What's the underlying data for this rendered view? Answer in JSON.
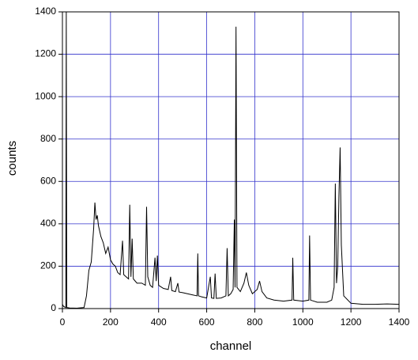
{
  "chart_data": {
    "type": "line",
    "x_label": "channel",
    "y_label": "counts",
    "x": [
      0,
      5,
      14,
      16,
      18,
      30,
      60,
      90,
      100,
      110,
      120,
      130,
      135,
      140,
      145,
      150,
      160,
      170,
      180,
      190,
      200,
      210,
      220,
      230,
      240,
      250,
      255,
      265,
      275,
      280,
      285,
      290,
      295,
      310,
      330,
      345,
      350,
      355,
      365,
      375,
      385,
      390,
      395,
      400,
      420,
      440,
      450,
      455,
      470,
      480,
      485,
      500,
      520,
      540,
      560,
      563,
      566,
      580,
      600,
      615,
      620,
      630,
      635,
      640,
      660,
      680,
      685,
      690,
      700,
      710,
      715,
      718,
      722,
      726,
      740,
      755,
      765,
      775,
      790,
      810,
      820,
      830,
      850,
      880,
      920,
      955,
      958,
      962,
      1000,
      1025,
      1028,
      1032,
      1060,
      1100,
      1120,
      1130,
      1135,
      1140,
      1145,
      1150,
      1155,
      1160,
      1170,
      1200,
      1250,
      1300,
      1350,
      1400
    ],
    "series": [
      {
        "color": "#000000",
        "values": [
          20,
          10,
          5,
          1400,
          5,
          3,
          2,
          5,
          60,
          180,
          220,
          380,
          500,
          420,
          440,
          390,
          340,
          310,
          260,
          290,
          230,
          210,
          200,
          170,
          160,
          320,
          160,
          150,
          140,
          490,
          150,
          330,
          140,
          120,
          120,
          110,
          480,
          150,
          110,
          100,
          240,
          130,
          250,
          110,
          95,
          90,
          150,
          85,
          80,
          120,
          78,
          75,
          70,
          65,
          60,
          260,
          60,
          55,
          50,
          150,
          50,
          48,
          165,
          48,
          50,
          60,
          285,
          60,
          70,
          90,
          420,
          100,
          1330,
          100,
          80,
          120,
          170,
          110,
          70,
          90,
          130,
          80,
          50,
          40,
          35,
          40,
          240,
          40,
          35,
          40,
          345,
          40,
          30,
          30,
          40,
          100,
          590,
          120,
          200,
          530,
          760,
          300,
          60,
          25,
          20,
          20,
          22,
          20
        ]
      }
    ],
    "xlim": [
      0,
      1400
    ],
    "ylim": [
      0,
      1400
    ],
    "xticks": [
      0,
      200,
      400,
      600,
      800,
      1000,
      1200,
      1400
    ],
    "yticks": [
      0,
      200,
      400,
      600,
      800,
      1000,
      1200,
      1400
    ],
    "grid": true,
    "grid_color": "#3333cc"
  }
}
